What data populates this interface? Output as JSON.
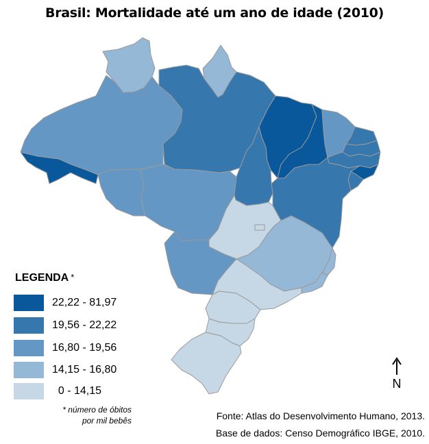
{
  "title": "Brasil: Mortalidade até um ano de idade (2010)",
  "legend": {
    "title": "LEGENDA",
    "asterisk": "*",
    "classes": [
      {
        "range": "22,22 - 81,97",
        "color": "#09589c"
      },
      {
        "range": "19,56 - 22,22",
        "color": "#3678ae"
      },
      {
        "range": "16,80 - 19,56",
        "color": "#6597c4"
      },
      {
        "range": "14,15 - 16,80",
        "color": "#94b8d6"
      },
      {
        "range": "  0 - 14,15",
        "color": "#c6d7e6"
      }
    ],
    "note_line1": "* número de óbitos",
    "note_line2": "por mil bebês"
  },
  "north_label": "N",
  "source_line1": "Fonte: Atlas do Desenvolvimento Humano, 2013.",
  "source_line2": "Base de dados: Censo Demográfico IBGE, 2010.",
  "states": [
    {
      "id": "AC",
      "class": 0
    },
    {
      "id": "AM",
      "class": 2
    },
    {
      "id": "RR",
      "class": 3
    },
    {
      "id": "AP",
      "class": 3
    },
    {
      "id": "PA",
      "class": 1
    },
    {
      "id": "RO",
      "class": 2
    },
    {
      "id": "MT",
      "class": 2
    },
    {
      "id": "TO",
      "class": 1
    },
    {
      "id": "MA",
      "class": 0
    },
    {
      "id": "PI",
      "class": 0
    },
    {
      "id": "CE",
      "class": 2
    },
    {
      "id": "RN",
      "class": 1
    },
    {
      "id": "PB",
      "class": 1
    },
    {
      "id": "PE",
      "class": 1
    },
    {
      "id": "AL",
      "class": 0
    },
    {
      "id": "SE",
      "class": 1
    },
    {
      "id": "BA",
      "class": 1
    },
    {
      "id": "GO",
      "class": 4
    },
    {
      "id": "DF",
      "class": 4
    },
    {
      "id": "MS",
      "class": 2
    },
    {
      "id": "MG",
      "class": 3
    },
    {
      "id": "ES",
      "class": 3
    },
    {
      "id": "RJ",
      "class": 3
    },
    {
      "id": "SP",
      "class": 4
    },
    {
      "id": "PR",
      "class": 4
    },
    {
      "id": "SC",
      "class": 4
    },
    {
      "id": "RS",
      "class": 4
    }
  ]
}
